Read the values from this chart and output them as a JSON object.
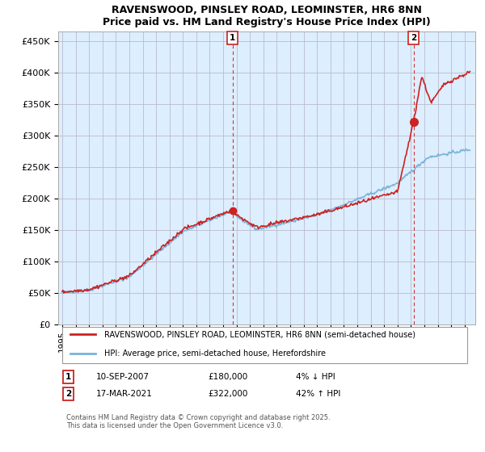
{
  "title_line1": "RAVENSWOOD, PINSLEY ROAD, LEOMINSTER, HR6 8NN",
  "title_line2": "Price paid vs. HM Land Registry's House Price Index (HPI)",
  "ylabel_ticks": [
    "£0",
    "£50K",
    "£100K",
    "£150K",
    "£200K",
    "£250K",
    "£300K",
    "£350K",
    "£400K",
    "£450K"
  ],
  "ytick_values": [
    0,
    50000,
    100000,
    150000,
    200000,
    250000,
    300000,
    350000,
    400000,
    450000
  ],
  "xlim_start": 1994.7,
  "xlim_end": 2025.8,
  "ylim_min": 0,
  "ylim_max": 465000,
  "hpi_color": "#7ab4d8",
  "price_color": "#cc2222",
  "chart_bg_color": "#ddeeff",
  "marker1_year": 2007.7,
  "marker1_price": 180000,
  "marker2_year": 2021.2,
  "marker2_price": 322000,
  "legend_line1": "RAVENSWOOD, PINSLEY ROAD, LEOMINSTER, HR6 8NN (semi-detached house)",
  "legend_line2": "HPI: Average price, semi-detached house, Herefordshire",
  "annotation1_date": "10-SEP-2007",
  "annotation1_price": "£180,000",
  "annotation1_hpi": "4% ↓ HPI",
  "annotation2_date": "17-MAR-2021",
  "annotation2_price": "£322,000",
  "annotation2_hpi": "42% ↑ HPI",
  "footnote": "Contains HM Land Registry data © Crown copyright and database right 2025.\nThis data is licensed under the Open Government Licence v3.0.",
  "background_color": "#ffffff",
  "grid_color": "#bbbbcc"
}
